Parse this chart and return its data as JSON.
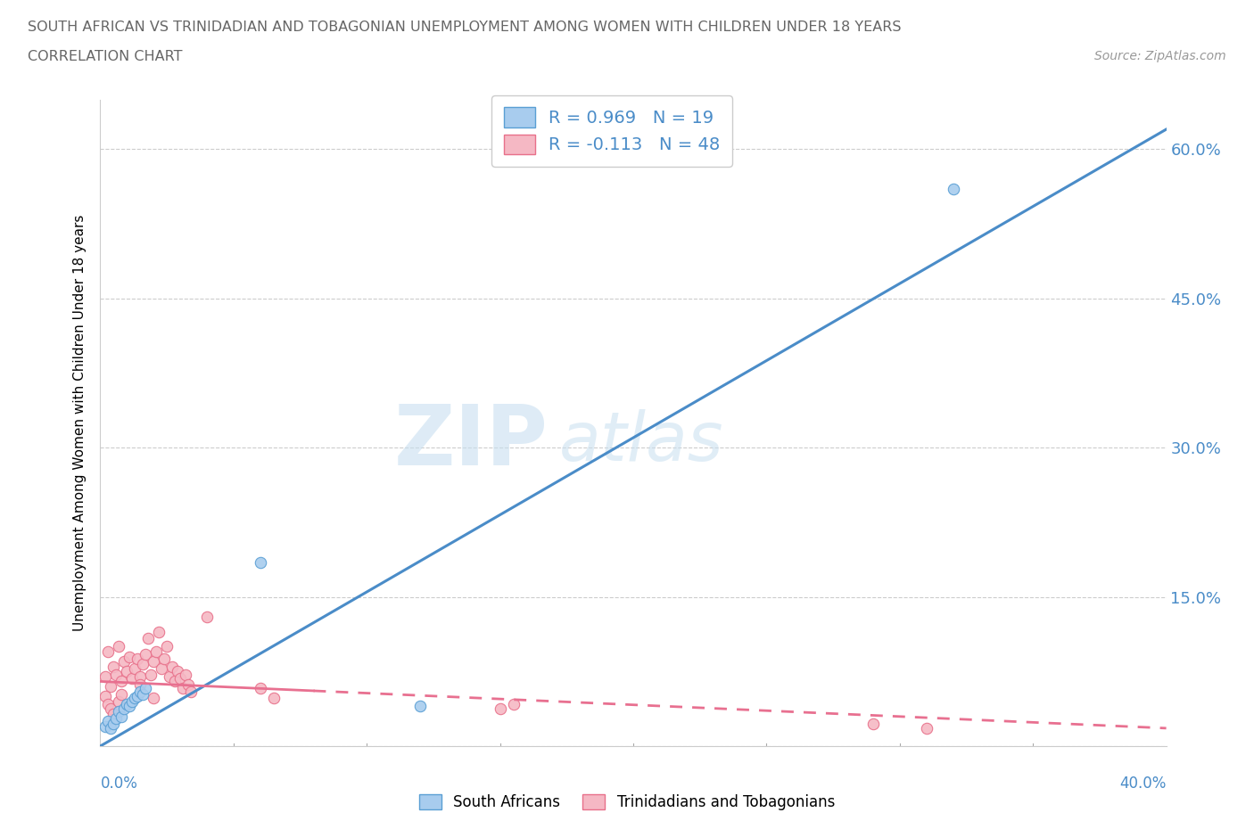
{
  "title": "SOUTH AFRICAN VS TRINIDADIAN AND TOBAGONIAN UNEMPLOYMENT AMONG WOMEN WITH CHILDREN UNDER 18 YEARS",
  "subtitle": "CORRELATION CHART",
  "source": "Source: ZipAtlas.com",
  "xlabel_bottom_left": "0.0%",
  "xlabel_bottom_right": "40.0%",
  "ylabel": "Unemployment Among Women with Children Under 18 years",
  "xlim": [
    0.0,
    0.4
  ],
  "ylim": [
    0.0,
    0.65
  ],
  "yticks": [
    0.0,
    0.15,
    0.3,
    0.45,
    0.6
  ],
  "ytick_labels": [
    "",
    "15.0%",
    "30.0%",
    "45.0%",
    "60.0%"
  ],
  "watermark_zip": "ZIP",
  "watermark_atlas": "atlas",
  "legend_r1": "R = 0.969   N = 19",
  "legend_r2": "R = -0.113   N = 48",
  "sa_color": "#a8ccee",
  "tt_color": "#f5b8c4",
  "sa_edge_color": "#5a9fd4",
  "tt_edge_color": "#e8708a",
  "sa_line_color": "#4a8cc8",
  "tt_line_color": "#e87090",
  "axis_label_color": "#4a8cc8",
  "title_color": "#666666",
  "sa_line": [
    [
      0.0,
      0.0
    ],
    [
      0.4,
      0.62
    ]
  ],
  "tt_line": [
    [
      0.0,
      0.065
    ],
    [
      0.4,
      0.018
    ]
  ],
  "sa_scatter": [
    [
      0.002,
      0.02
    ],
    [
      0.003,
      0.025
    ],
    [
      0.004,
      0.018
    ],
    [
      0.005,
      0.022
    ],
    [
      0.006,
      0.028
    ],
    [
      0.007,
      0.035
    ],
    [
      0.008,
      0.03
    ],
    [
      0.009,
      0.038
    ],
    [
      0.01,
      0.042
    ],
    [
      0.011,
      0.04
    ],
    [
      0.012,
      0.045
    ],
    [
      0.013,
      0.048
    ],
    [
      0.014,
      0.05
    ],
    [
      0.015,
      0.055
    ],
    [
      0.016,
      0.052
    ],
    [
      0.017,
      0.058
    ],
    [
      0.06,
      0.185
    ],
    [
      0.12,
      0.04
    ],
    [
      0.32,
      0.56
    ]
  ],
  "tt_scatter": [
    [
      0.002,
      0.07
    ],
    [
      0.003,
      0.095
    ],
    [
      0.004,
      0.06
    ],
    [
      0.005,
      0.08
    ],
    [
      0.006,
      0.072
    ],
    [
      0.007,
      0.1
    ],
    [
      0.008,
      0.065
    ],
    [
      0.009,
      0.085
    ],
    [
      0.01,
      0.075
    ],
    [
      0.011,
      0.09
    ],
    [
      0.012,
      0.068
    ],
    [
      0.013,
      0.078
    ],
    [
      0.014,
      0.088
    ],
    [
      0.015,
      0.07
    ],
    [
      0.016,
      0.082
    ],
    [
      0.017,
      0.092
    ],
    [
      0.018,
      0.108
    ],
    [
      0.019,
      0.072
    ],
    [
      0.02,
      0.085
    ],
    [
      0.021,
      0.095
    ],
    [
      0.022,
      0.115
    ],
    [
      0.023,
      0.078
    ],
    [
      0.024,
      0.088
    ],
    [
      0.025,
      0.1
    ],
    [
      0.026,
      0.07
    ],
    [
      0.027,
      0.08
    ],
    [
      0.028,
      0.065
    ],
    [
      0.029,
      0.075
    ],
    [
      0.03,
      0.068
    ],
    [
      0.031,
      0.058
    ],
    [
      0.032,
      0.072
    ],
    [
      0.033,
      0.062
    ],
    [
      0.034,
      0.055
    ],
    [
      0.04,
      0.13
    ],
    [
      0.06,
      0.058
    ],
    [
      0.065,
      0.048
    ],
    [
      0.15,
      0.038
    ],
    [
      0.155,
      0.042
    ],
    [
      0.29,
      0.022
    ],
    [
      0.31,
      0.018
    ],
    [
      0.002,
      0.05
    ],
    [
      0.003,
      0.042
    ],
    [
      0.004,
      0.038
    ],
    [
      0.005,
      0.032
    ],
    [
      0.007,
      0.045
    ],
    [
      0.008,
      0.052
    ],
    [
      0.015,
      0.062
    ],
    [
      0.02,
      0.048
    ]
  ]
}
